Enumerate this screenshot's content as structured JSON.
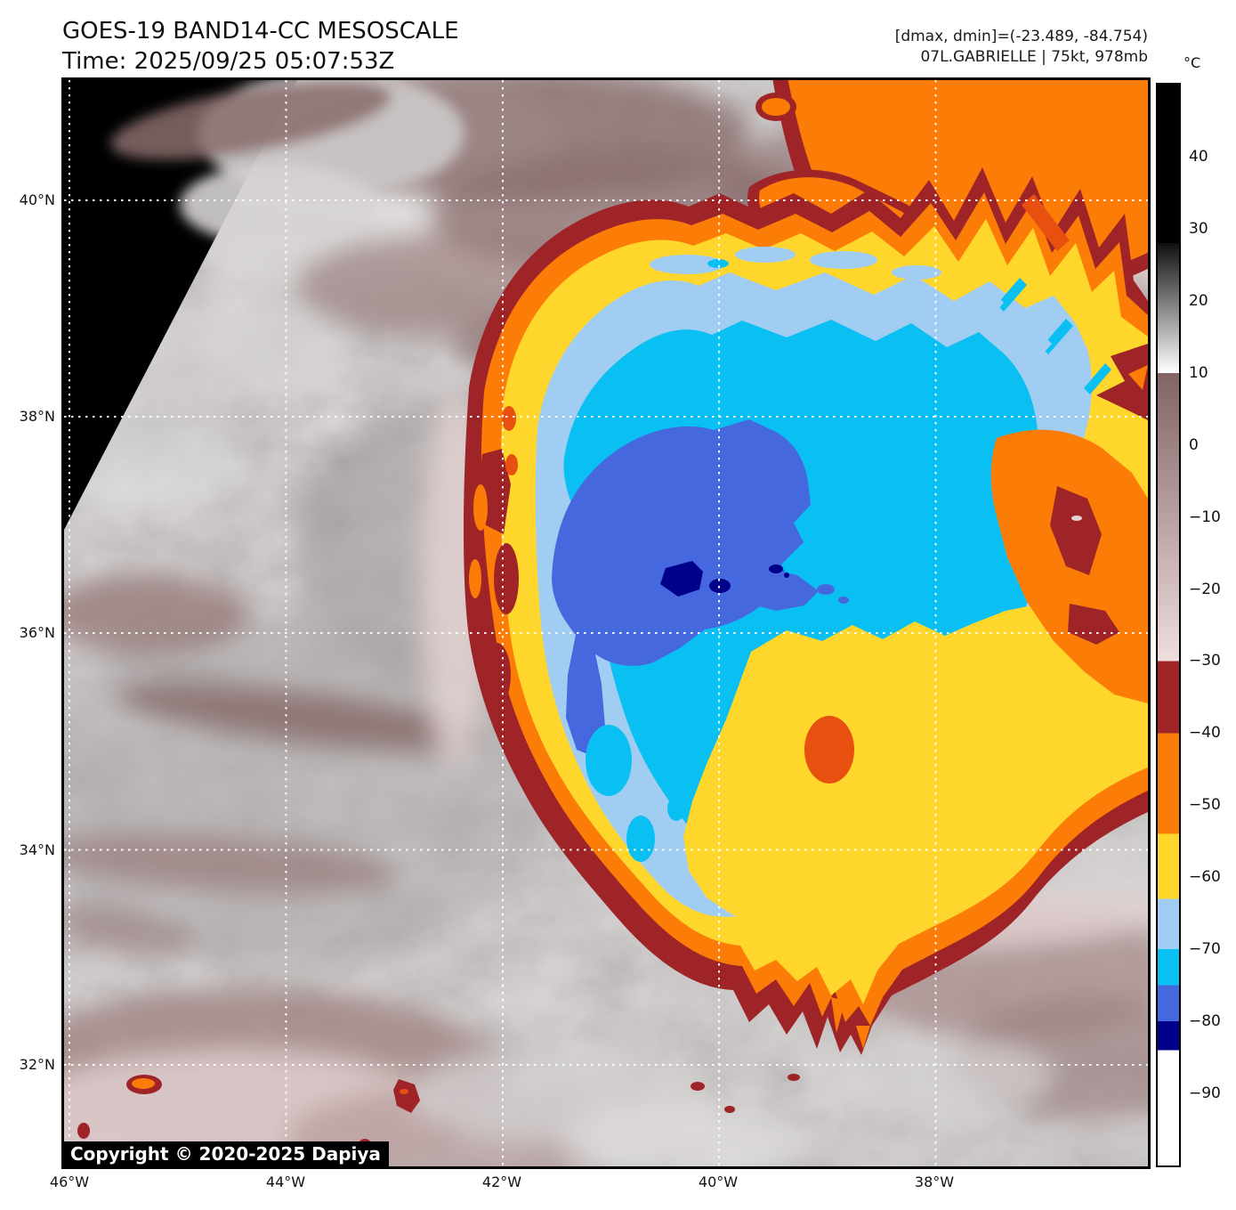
{
  "header": {
    "title": "GOES-19 BAND14-CC MESOSCALE",
    "time": "Time: 2025/09/25 05:07:53Z",
    "dmax_dmin": "[dmax, dmin]=(-23.489, -84.754)",
    "storm": "07L.GABRIELLE | 75kt, 978mb"
  },
  "map": {
    "copyright": "Copyright © 2020-2025 Dapiya",
    "x_axis": {
      "labels": [
        "46°W",
        "44°W",
        "42°W",
        "40°W",
        "38°W"
      ]
    },
    "y_axis": {
      "labels": [
        "40°N",
        "38°N",
        "36°N",
        "34°N",
        "32°N"
      ]
    }
  },
  "colorbar": {
    "unit": "°C",
    "domain": [
      50,
      -100
    ],
    "ticks": [
      {
        "value": 40,
        "label": "40"
      },
      {
        "value": 30,
        "label": "30"
      },
      {
        "value": 20,
        "label": "20"
      },
      {
        "value": 10,
        "label": "10"
      },
      {
        "value": 0,
        "label": "0"
      },
      {
        "value": -10,
        "label": "−10"
      },
      {
        "value": -20,
        "label": "−20"
      },
      {
        "value": -30,
        "label": "−30"
      },
      {
        "value": -40,
        "label": "−40"
      },
      {
        "value": -50,
        "label": "−50"
      },
      {
        "value": -60,
        "label": "−60"
      },
      {
        "value": -70,
        "label": "−70"
      },
      {
        "value": -80,
        "label": "−80"
      },
      {
        "value": -90,
        "label": "−90"
      }
    ],
    "segments": [
      {
        "label": "black",
        "from": 50,
        "to": 28,
        "color": "#000000"
      },
      {
        "label": "gray-gradient",
        "from": 28,
        "to": 10,
        "color_start": "#101010",
        "color_end": "#ffffff"
      },
      {
        "label": "mauve-gradient",
        "from": 10,
        "to": -30,
        "color_start": "#816363",
        "color_end": "#f0dede"
      },
      {
        "label": "dark-red",
        "from": -30,
        "to": -40,
        "color": "#9e2428"
      },
      {
        "label": "orange",
        "from": -40,
        "to": -54,
        "color": "#fb7d07"
      },
      {
        "label": "yellow",
        "from": -54,
        "to": -63,
        "color": "#ffd62b"
      },
      {
        "label": "light-blue",
        "from": -63,
        "to": -70,
        "color": "#a2cdf2"
      },
      {
        "label": "cyan",
        "from": -70,
        "to": -75,
        "color": "#0ac0f2"
      },
      {
        "label": "royal-blue",
        "from": -75,
        "to": -80,
        "color": "#4668df"
      },
      {
        "label": "navy",
        "from": -80,
        "to": -84,
        "color": "#00008b"
      },
      {
        "label": "white",
        "from": -84,
        "to": -100,
        "color": "#ffffff"
      }
    ]
  },
  "palette": {
    "black_nodata": "#000000",
    "gray_cloud": "#b0abab",
    "white_cloud": "#ebe9e9",
    "mauve": "#9a7d7d",
    "mauve_dark": "#8a6d6d",
    "pink_pale": "#e3d2d2",
    "dark_red": "#9e2428",
    "orange": "#fb7d07",
    "red_orange": "#e8500f",
    "yellow": "#ffd62b",
    "light_blue": "#a2cdf2",
    "cyan": "#0ac0f2",
    "royal_blue": "#4668df",
    "navy": "#00008b",
    "grid_line": "#ffffff"
  }
}
